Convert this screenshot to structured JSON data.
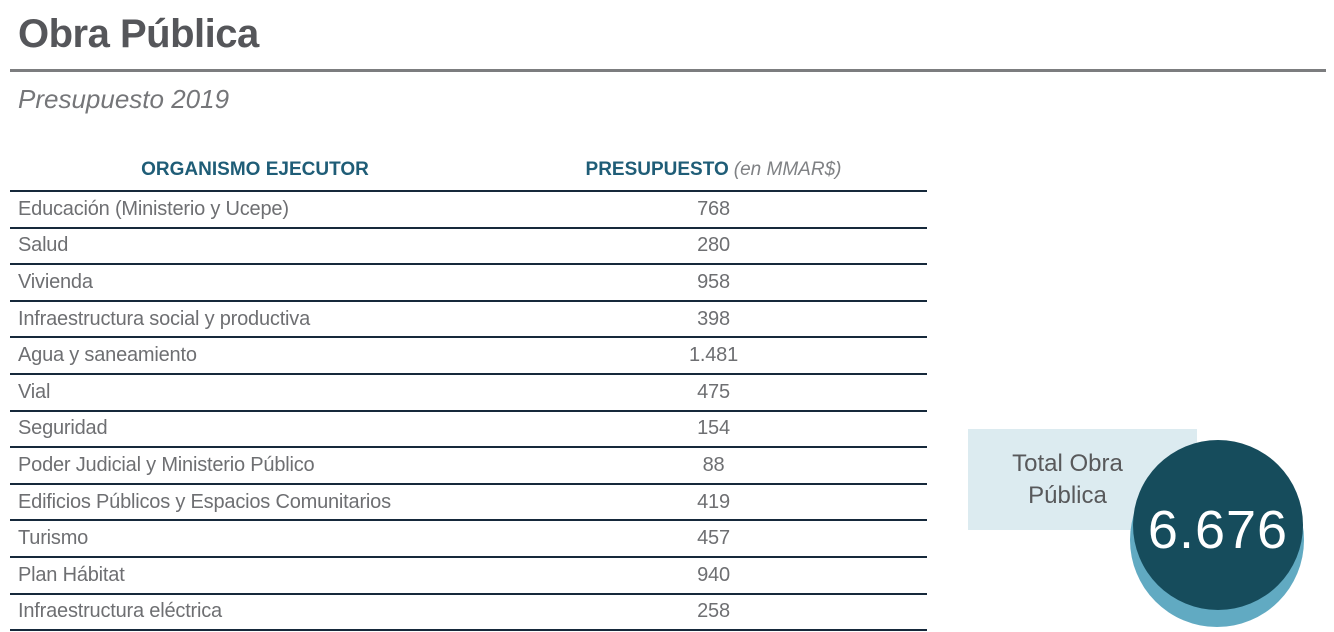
{
  "page": {
    "title": "Obra Pública",
    "subtitle": "Presupuesto 2019"
  },
  "table": {
    "headers": {
      "organismo": "ORGANISMO EJECUTOR",
      "presupuesto": "PRESUPUESTO",
      "presupuesto_unit": "(en MMAR$)"
    },
    "rows": [
      {
        "label": "Educación (Ministerio y Ucepe)",
        "value": "768"
      },
      {
        "label": "Salud",
        "value": "280"
      },
      {
        "label": "Vivienda",
        "value": "958"
      },
      {
        "label": "Infraestructura social y productiva",
        "value": "398"
      },
      {
        "label": "Agua y saneamiento",
        "value": "1.481"
      },
      {
        "label": "Vial",
        "value": "475"
      },
      {
        "label": "Seguridad",
        "value": "154"
      },
      {
        "label": "Poder Judicial y Ministerio Público",
        "value": "88"
      },
      {
        "label": "Edificios Públicos y Espacios Comunitarios",
        "value": "419"
      },
      {
        "label": "Turismo",
        "value": "457"
      },
      {
        "label": "Plan Hábitat",
        "value": "940"
      },
      {
        "label": "Infraestructura eléctrica",
        "value": "258"
      }
    ]
  },
  "total": {
    "label_line1": "Total Obra",
    "label_line2": "Pública",
    "value": "6.676"
  },
  "colors": {
    "header_teal": "#1f5d77",
    "row_border_navy": "#16293b",
    "body_text_gray": "#6e6f72",
    "title_gray": "#55565a",
    "total_box_bg": "#dcebf0",
    "total_circle_dark": "#164c5c",
    "total_circle_light": "#61aac2",
    "total_value_text": "#ffffff"
  }
}
